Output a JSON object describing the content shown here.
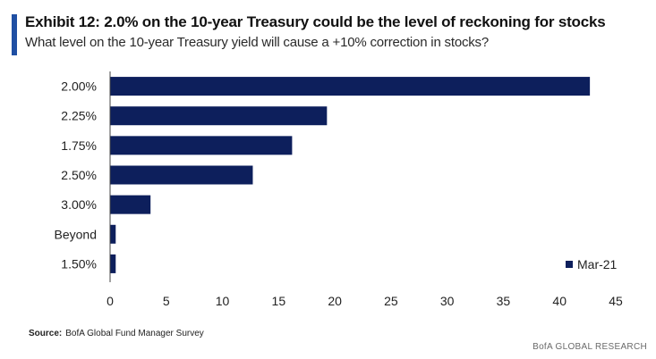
{
  "header": {
    "title": "Exhibit 12: 2.0% on the 10-year Treasury could be the level of reckoning for stocks",
    "subtitle": "What level on the 10-year Treasury yield will cause a +10% correction in stocks?"
  },
  "footer": {
    "source_label": "Source:",
    "source_text": "BofA Global Fund Manager Survey",
    "brand": "BofA GLOBAL RESEARCH"
  },
  "colors": {
    "bar": "#0d1f5c",
    "accent": "#1f4fa3",
    "axis": "#444444"
  },
  "chart_data": {
    "type": "bar",
    "orientation": "horizontal",
    "title": "Exhibit 12: 2.0% on the 10-year Treasury could be the level of reckoning for stocks",
    "subtitle": "What level on the 10-year Treasury yield will cause a +10% correction in stocks?",
    "categories": [
      "2.00%",
      "2.25%",
      "1.75%",
      "2.50%",
      "3.00%",
      "Beyond",
      "1.50%"
    ],
    "series": [
      {
        "name": "Mar-21",
        "values": [
          42.7,
          19.3,
          16.2,
          12.7,
          3.6,
          0.5,
          0.5
        ]
      }
    ],
    "xlim": [
      0,
      45
    ],
    "xticks": [
      0,
      5,
      10,
      15,
      20,
      25,
      30,
      35,
      40,
      45
    ],
    "xlabel": "",
    "ylabel": "",
    "grid": false,
    "legend": "bottom-right"
  }
}
